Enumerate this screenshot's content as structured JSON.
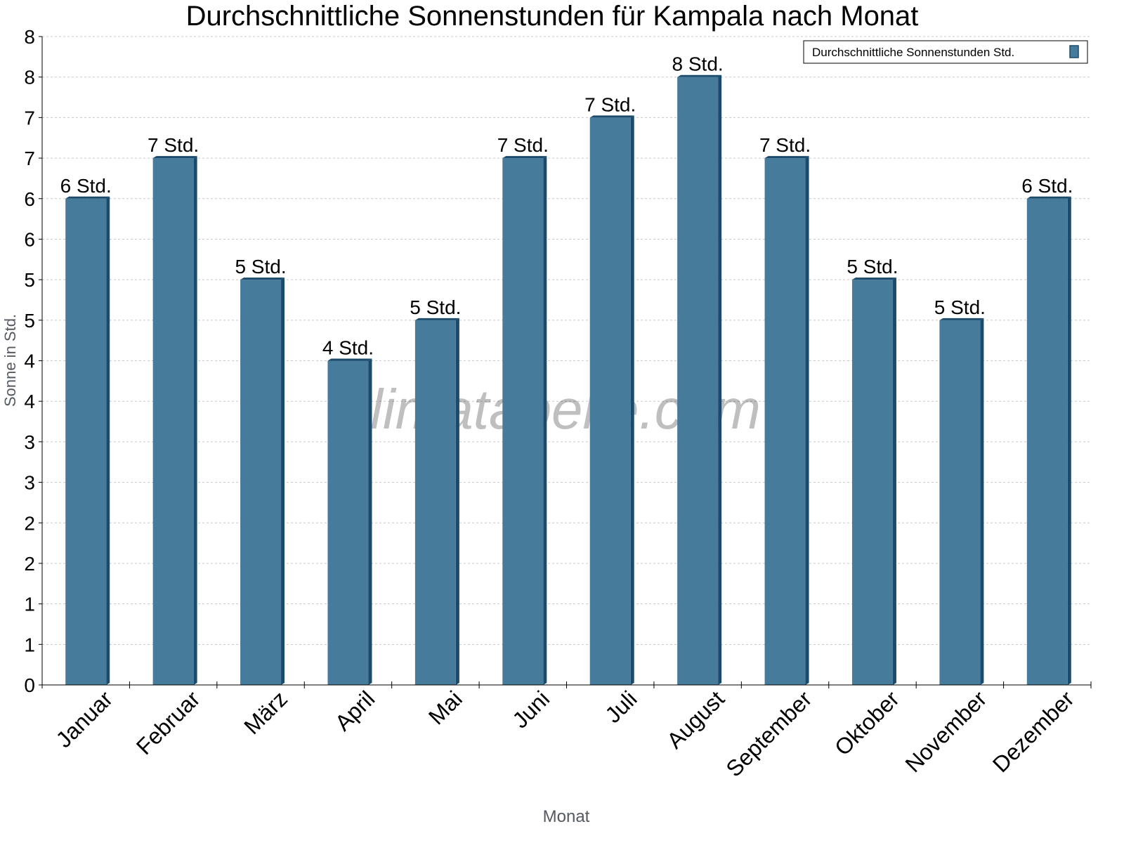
{
  "chart_data": {
    "type": "bar",
    "title": "Durchschnittliche Sonnenstunden für Kampala nach Monat",
    "xlabel": "Monat",
    "ylabel": "Sonne in Std.",
    "categories": [
      "Januar",
      "Februar",
      "März",
      "April",
      "Mai",
      "Juni",
      "Juli",
      "August",
      "September",
      "Oktober",
      "November",
      "Dezember"
    ],
    "series": [
      {
        "name": "Durchschnittliche Sonnenstunden Std.",
        "values": [
          6,
          6.5,
          5,
          4,
          4.5,
          6.5,
          7,
          7.5,
          6.5,
          5,
          4.5,
          6
        ],
        "labels": [
          "6 Std.",
          "7 Std.",
          "5 Std.",
          "4 Std.",
          "5 Std.",
          "7 Std.",
          "7 Std.",
          "8 Std.",
          "7 Std.",
          "5 Std.",
          "5 Std.",
          "6 Std."
        ]
      }
    ],
    "ylim": [
      0,
      8
    ],
    "yticks": [
      0,
      0.5,
      1,
      1.5,
      2,
      2.5,
      3,
      3.5,
      4,
      4.5,
      5,
      5.5,
      6,
      6.5,
      7,
      7.5,
      8
    ],
    "ytick_labels": [
      "0",
      "1",
      "1",
      "2",
      "2",
      "3",
      "3",
      "4",
      "4",
      "5",
      "5",
      "6",
      "6",
      "7",
      "7",
      "8",
      "8"
    ],
    "grid": true,
    "legend": "top-right",
    "watermark": "klimatabelle.com",
    "colors": {
      "bar": "#477b9c",
      "bar_side": "#1b4a6b",
      "grid": "#c8c8c8",
      "axis_title": "#555a60"
    }
  }
}
